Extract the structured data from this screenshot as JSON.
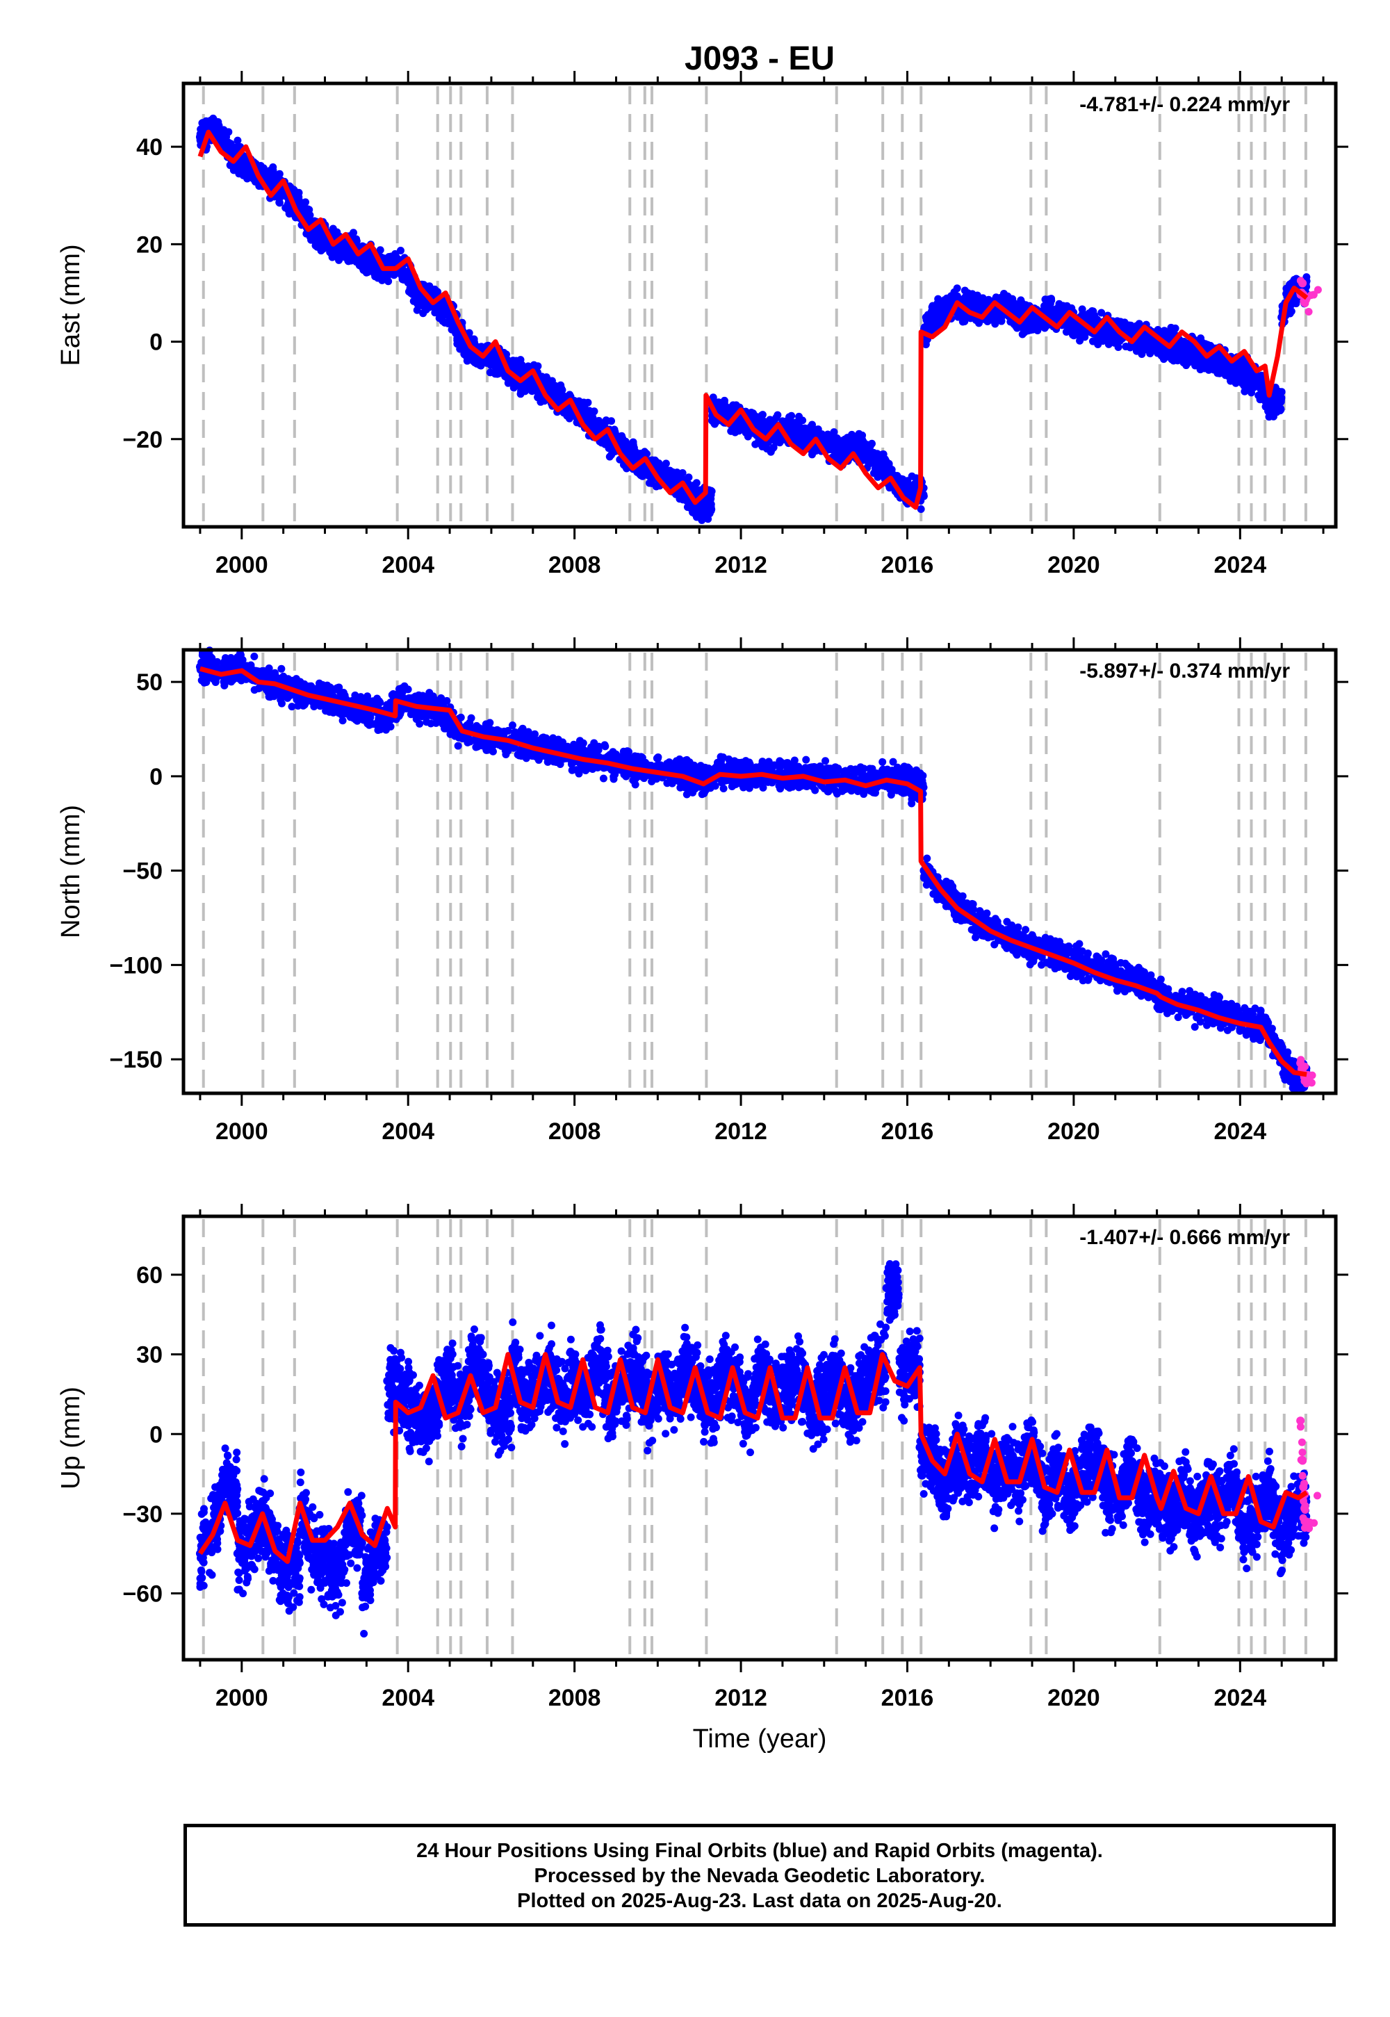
{
  "title": "J093 - EU",
  "xlabel": "Time (year)",
  "footer": [
    "24 Hour Positions Using Final Orbits (blue) and Rapid Orbits (magenta).",
    "Processed by the Nevada Geodetic Laboratory.",
    "Plotted on 2025-Aug-23. Last data on 2025-Aug-20."
  ],
  "colors": {
    "final": "#0000ff",
    "rapid": "#ff33cc",
    "model": "#ff0000",
    "events": "#bfbfbf"
  },
  "chart_data": [
    {
      "type": "scatter",
      "ylabel": "East (mm)",
      "rate_label": "-4.781+/- 0.224 mm/yr",
      "xlim": [
        1998.6,
        2026.3
      ],
      "ylim": [
        -38,
        53
      ],
      "xticks": [
        2000,
        2004,
        2008,
        2012,
        2016,
        2020,
        2024
      ],
      "yticks": [
        40,
        20,
        0,
        -20
      ],
      "series": [
        {
          "name": "Final Orbits",
          "color": "#0000ff",
          "x": [
            1999.0,
            1999.4,
            1999.8,
            2000.2,
            2000.6,
            2001.0,
            2001.4,
            2001.8,
            2002.2,
            2002.6,
            2003.0,
            2003.4,
            2003.8,
            2004.2,
            2004.6,
            2005.0,
            2005.4,
            2005.8,
            2006.2,
            2006.6,
            2007.0,
            2007.4,
            2007.8,
            2008.2,
            2008.6,
            2009.0,
            2009.4,
            2009.8,
            2010.2,
            2010.6,
            2011.0,
            2011.3,
            2011.6,
            2012.0,
            2012.4,
            2012.8,
            2013.2,
            2013.6,
            2014.0,
            2014.4,
            2014.8,
            2015.2,
            2015.6,
            2016.0,
            2016.4,
            2016.8,
            2017.2,
            2017.6,
            2018.0,
            2018.4,
            2018.8,
            2019.2,
            2019.6,
            2020.0,
            2020.4,
            2020.8,
            2021.2,
            2021.6,
            2022.0,
            2022.4,
            2022.8,
            2023.2,
            2023.6,
            2024.0,
            2024.4,
            2024.7,
            2025.0,
            2025.3
          ],
          "y": [
            42,
            44,
            38,
            36,
            33,
            31,
            27,
            22,
            20,
            19,
            17,
            15,
            16,
            10,
            8,
            6,
            -1,
            -3,
            -4,
            -7,
            -8,
            -10,
            -13,
            -15,
            -18,
            -21,
            -24,
            -26,
            -28,
            -30,
            -33,
            -14,
            -15,
            -16,
            -18,
            -19,
            -18,
            -20,
            -21,
            -22,
            -22,
            -24,
            -28,
            -31,
            2,
            6,
            8,
            7,
            6,
            7,
            5,
            5,
            6,
            4,
            3,
            2,
            2,
            1,
            0,
            -1,
            -2,
            -3,
            -4,
            -6,
            -8,
            -12,
            5,
            11
          ]
        },
        {
          "name": "Rapid Orbits",
          "color": "#ff33cc",
          "x": [
            2025.45,
            2025.5,
            2025.55,
            2025.6
          ],
          "y": [
            10,
            12,
            8,
            9
          ]
        }
      ],
      "model": {
        "x": [
          1999.0,
          1999.2,
          1999.5,
          1999.8,
          2000.1,
          2000.4,
          2000.7,
          2001.0,
          2001.3,
          2001.6,
          2001.9,
          2002.2,
          2002.5,
          2002.8,
          2003.1,
          2003.4,
          2003.7,
          2004.0,
          2004.3,
          2004.6,
          2004.9,
          2005.2,
          2005.5,
          2005.8,
          2006.1,
          2006.4,
          2006.7,
          2007.0,
          2007.3,
          2007.6,
          2007.9,
          2008.2,
          2008.5,
          2008.8,
          2009.1,
          2009.4,
          2009.7,
          2010.0,
          2010.3,
          2010.6,
          2010.9,
          2011.15,
          2011.16,
          2011.4,
          2011.7,
          2012.0,
          2012.3,
          2012.6,
          2012.9,
          2013.2,
          2013.5,
          2013.8,
          2014.1,
          2014.4,
          2014.7,
          2015.0,
          2015.3,
          2015.6,
          2015.9,
          2016.2,
          2016.32,
          2016.33,
          2016.6,
          2016.9,
          2017.2,
          2017.5,
          2017.8,
          2018.1,
          2018.4,
          2018.7,
          2019.0,
          2019.3,
          2019.6,
          2019.9,
          2020.2,
          2020.5,
          2020.8,
          2021.1,
          2021.4,
          2021.7,
          2022.0,
          2022.3,
          2022.6,
          2022.9,
          2023.2,
          2023.5,
          2023.8,
          2024.1,
          2024.4,
          2024.6,
          2024.7,
          2024.9,
          2025.1,
          2025.3,
          2025.6
        ],
        "y": [
          38,
          43,
          39,
          37,
          40,
          34,
          30,
          33,
          27,
          23,
          25,
          20,
          22,
          18,
          20,
          15,
          15,
          17,
          11,
          8,
          10,
          4,
          -1,
          -3,
          0,
          -6,
          -8,
          -6,
          -11,
          -14,
          -12,
          -17,
          -20,
          -18,
          -23,
          -26,
          -24,
          -28,
          -31,
          -29,
          -33,
          -31,
          -11,
          -15,
          -17,
          -14,
          -18,
          -20,
          -17,
          -21,
          -23,
          -20,
          -24,
          -26,
          -23,
          -27,
          -30,
          -28,
          -32,
          -34,
          -30,
          2,
          1,
          3,
          8,
          6,
          5,
          8,
          6,
          4,
          7,
          5,
          3,
          6,
          4,
          2,
          5,
          2,
          0,
          3,
          1,
          -1,
          2,
          0,
          -3,
          -1,
          -4,
          -2,
          -6,
          -5,
          -11,
          -3,
          8,
          11,
          9
        ]
      }
    },
    {
      "type": "scatter",
      "ylabel": "North (mm)",
      "rate_label": "-5.897+/- 0.374 mm/yr",
      "xlim": [
        1998.6,
        2026.3
      ],
      "ylim": [
        -168,
        67
      ],
      "xticks": [
        2000,
        2004,
        2008,
        2012,
        2016,
        2020,
        2024
      ],
      "yticks": [
        50,
        0,
        -50,
        -100,
        -150
      ],
      "series": [
        {
          "name": "Final Orbits",
          "color": "#0000ff",
          "x": [
            1999.0,
            1999.5,
            2000.0,
            2000.5,
            2001.0,
            2001.5,
            2002.0,
            2002.5,
            2003.0,
            2003.5,
            2003.8,
            2004.3,
            2004.8,
            2005.2,
            2005.8,
            2006.4,
            2007.0,
            2007.6,
            2008.2,
            2008.8,
            2009.4,
            2010.0,
            2010.6,
            2011.1,
            2011.5,
            2012.0,
            2012.6,
            2013.2,
            2013.8,
            2014.4,
            2015.0,
            2015.6,
            2016.1,
            2016.4,
            2016.8,
            2017.2,
            2017.6,
            2018.0,
            2018.6,
            2019.2,
            2019.8,
            2020.4,
            2021.0,
            2021.6,
            2022.2,
            2022.8,
            2023.4,
            2024.0,
            2024.6,
            2025.0,
            2025.3
          ],
          "y": [
            58,
            55,
            57,
            51,
            47,
            44,
            41,
            38,
            35,
            32,
            40,
            37,
            35,
            25,
            21,
            19,
            16,
            12,
            10,
            8,
            5,
            3,
            1,
            -3,
            2,
            1,
            2,
            0,
            1,
            -2,
            -3,
            -1,
            -5,
            -50,
            -60,
            -68,
            -75,
            -80,
            -87,
            -92,
            -97,
            -100,
            -105,
            -110,
            -118,
            -122,
            -125,
            -128,
            -133,
            -150,
            -158
          ]
        },
        {
          "name": "Rapid Orbits",
          "color": "#ff33cc",
          "x": [
            2025.45,
            2025.5,
            2025.55,
            2025.6
          ],
          "y": [
            -152,
            -155,
            -158,
            -160
          ]
        }
      ],
      "model": {
        "x": [
          1999.0,
          1999.5,
          2000.0,
          2000.4,
          2000.8,
          2001.2,
          2001.6,
          2002.0,
          2002.4,
          2002.8,
          2003.2,
          2003.69,
          2003.7,
          2004.2,
          2004.6,
          2005.0,
          2005.3,
          2005.8,
          2006.4,
          2007.0,
          2007.6,
          2008.2,
          2008.8,
          2009.4,
          2010.0,
          2010.6,
          2011.1,
          2011.5,
          2012.0,
          2012.5,
          2013.0,
          2013.5,
          2014.0,
          2014.5,
          2015.0,
          2015.5,
          2016.0,
          2016.32,
          2016.33,
          2016.8,
          2017.2,
          2017.6,
          2018.0,
          2018.5,
          2019.0,
          2019.5,
          2020.0,
          2020.5,
          2021.0,
          2021.5,
          2022.0,
          2022.1,
          2022.5,
          2023.0,
          2023.5,
          2024.0,
          2024.5,
          2024.7,
          2025.0,
          2025.3,
          2025.6
        ],
        "y": [
          57,
          54,
          56,
          50,
          49,
          46,
          43,
          41,
          39,
          37,
          35,
          32,
          40,
          37,
          36,
          35,
          24,
          21,
          19,
          15,
          12,
          9,
          7,
          4,
          2,
          0,
          -4,
          1,
          0,
          1,
          -1,
          0,
          -3,
          -2,
          -5,
          -2,
          -4,
          -8,
          -45,
          -60,
          -70,
          -76,
          -82,
          -87,
          -91,
          -95,
          -99,
          -104,
          -108,
          -111,
          -115,
          -117,
          -121,
          -124,
          -128,
          -131,
          -133,
          -141,
          -151,
          -157,
          -158
        ]
      }
    },
    {
      "type": "scatter",
      "ylabel": "Up (mm)",
      "rate_label": "-1.407+/- 0.666 mm/yr",
      "xlim": [
        1998.6,
        2026.3
      ],
      "ylim": [
        -85,
        82
      ],
      "xticks": [
        2000,
        2004,
        2008,
        2012,
        2016,
        2020,
        2024
      ],
      "yticks": [
        60,
        30,
        0,
        -30,
        -60
      ],
      "series": [
        {
          "name": "Final Orbits",
          "color": "#0000ff",
          "x": [
            1999.0,
            1999.3,
            1999.6,
            1999.9,
            2000.2,
            2000.5,
            2000.8,
            2001.1,
            2001.4,
            2001.7,
            2002.0,
            2002.3,
            2002.6,
            2002.9,
            2003.2,
            2003.5,
            2003.8,
            2004.1,
            2004.4,
            2004.7,
            2005.0,
            2005.3,
            2005.6,
            2005.9,
            2006.2,
            2006.5,
            2006.8,
            2007.1,
            2007.4,
            2007.7,
            2008.0,
            2008.3,
            2008.6,
            2008.9,
            2009.2,
            2009.5,
            2009.8,
            2010.1,
            2010.4,
            2010.7,
            2011.0,
            2011.3,
            2011.6,
            2011.9,
            2012.2,
            2012.5,
            2012.8,
            2013.1,
            2013.4,
            2013.7,
            2014.0,
            2014.3,
            2014.6,
            2014.9,
            2015.2,
            2015.5,
            2015.8,
            2016.1,
            2016.3,
            2016.6,
            2016.9,
            2017.2,
            2017.5,
            2017.8,
            2018.1,
            2018.4,
            2018.7,
            2019.0,
            2019.3,
            2019.6,
            2019.9,
            2020.2,
            2020.5,
            2020.8,
            2021.1,
            2021.4,
            2021.7,
            2022.0,
            2022.3,
            2022.6,
            2022.9,
            2023.2,
            2023.5,
            2023.8,
            2024.1,
            2024.4,
            2024.7,
            2025.0,
            2025.3
          ],
          "y": [
            -45,
            -35,
            -20,
            -45,
            -40,
            -30,
            -45,
            -50,
            -28,
            -42,
            -50,
            -55,
            -35,
            -60,
            -45,
            20,
            15,
            8,
            5,
            12,
            20,
            10,
            28,
            15,
            8,
            30,
            12,
            18,
            25,
            10,
            22,
            14,
            28,
            10,
            18,
            24,
            8,
            20,
            12,
            26,
            15,
            10,
            22,
            18,
            8,
            25,
            12,
            18,
            22,
            8,
            15,
            20,
            10,
            18,
            25,
            55,
            20,
            25,
            -5,
            -10,
            -20,
            -8,
            -15,
            -5,
            -20,
            -10,
            -18,
            -5,
            -22,
            -12,
            -25,
            -15,
            -10,
            -20,
            -25,
            -12,
            -28,
            -22,
            -30,
            -20,
            -32,
            -25,
            -28,
            -18,
            -35,
            -30,
            -22,
            -38,
            -28
          ]
        },
        {
          "name": "Rapid Orbits",
          "color": "#ff33cc",
          "x": [
            2025.45,
            2025.5,
            2025.52,
            2025.55,
            2025.6
          ],
          "y": [
            5,
            -10,
            -20,
            -28,
            -33
          ]
        }
      ],
      "model": {
        "x": [
          1999.0,
          1999.3,
          1999.6,
          1999.9,
          2000.2,
          2000.5,
          2000.8,
          2001.1,
          2001.4,
          2001.7,
          2002.0,
          2002.3,
          2002.6,
          2002.9,
          2003.2,
          2003.5,
          2003.69,
          2003.7,
          2004.0,
          2004.3,
          2004.6,
          2004.9,
          2005.2,
          2005.5,
          2005.8,
          2006.1,
          2006.4,
          2006.7,
          2007.0,
          2007.3,
          2007.6,
          2007.9,
          2008.2,
          2008.5,
          2008.8,
          2009.1,
          2009.4,
          2009.7,
          2010.0,
          2010.3,
          2010.6,
          2010.9,
          2011.2,
          2011.5,
          2011.8,
          2012.1,
          2012.4,
          2012.7,
          2013.0,
          2013.3,
          2013.6,
          2013.9,
          2014.2,
          2014.5,
          2014.8,
          2015.1,
          2015.4,
          2015.7,
          2016.0,
          2016.3,
          2016.32,
          2016.33,
          2016.6,
          2016.9,
          2017.2,
          2017.5,
          2017.8,
          2018.1,
          2018.4,
          2018.7,
          2019.0,
          2019.3,
          2019.6,
          2019.9,
          2020.2,
          2020.5,
          2020.8,
          2021.1,
          2021.4,
          2021.7,
          2022.0,
          2022.1,
          2022.4,
          2022.7,
          2023.0,
          2023.3,
          2023.6,
          2023.9,
          2024.2,
          2024.5,
          2024.8,
          2025.1,
          2025.4,
          2025.6
        ],
        "y": [
          -45,
          -38,
          -26,
          -40,
          -42,
          -30,
          -44,
          -48,
          -26,
          -40,
          -40,
          -35,
          -26,
          -38,
          -42,
          -28,
          -35,
          12,
          8,
          10,
          22,
          6,
          8,
          22,
          8,
          10,
          30,
          12,
          10,
          30,
          12,
          10,
          28,
          10,
          8,
          28,
          10,
          8,
          28,
          10,
          8,
          25,
          8,
          6,
          25,
          8,
          6,
          25,
          6,
          6,
          25,
          6,
          6,
          25,
          8,
          8,
          30,
          20,
          18,
          25,
          10,
          0,
          -10,
          -15,
          0,
          -15,
          -18,
          -2,
          -18,
          -18,
          -2,
          -20,
          -22,
          -6,
          -22,
          -22,
          -6,
          -24,
          -24,
          -8,
          -24,
          -28,
          -14,
          -28,
          -30,
          -16,
          -30,
          -30,
          -16,
          -33,
          -35,
          -22,
          -24,
          -22
        ]
      }
    }
  ],
  "event_lines": [
    1999.08,
    2000.51,
    2001.27,
    2003.74,
    2004.71,
    2005.02,
    2005.27,
    2005.9,
    2006.51,
    2009.33,
    2009.69,
    2009.86,
    2011.17,
    2014.3,
    2015.41,
    2015.88,
    2016.33,
    2018.97,
    2019.34,
    2022.07,
    2023.97,
    2024.27,
    2024.6,
    2025.06,
    2025.58
  ]
}
